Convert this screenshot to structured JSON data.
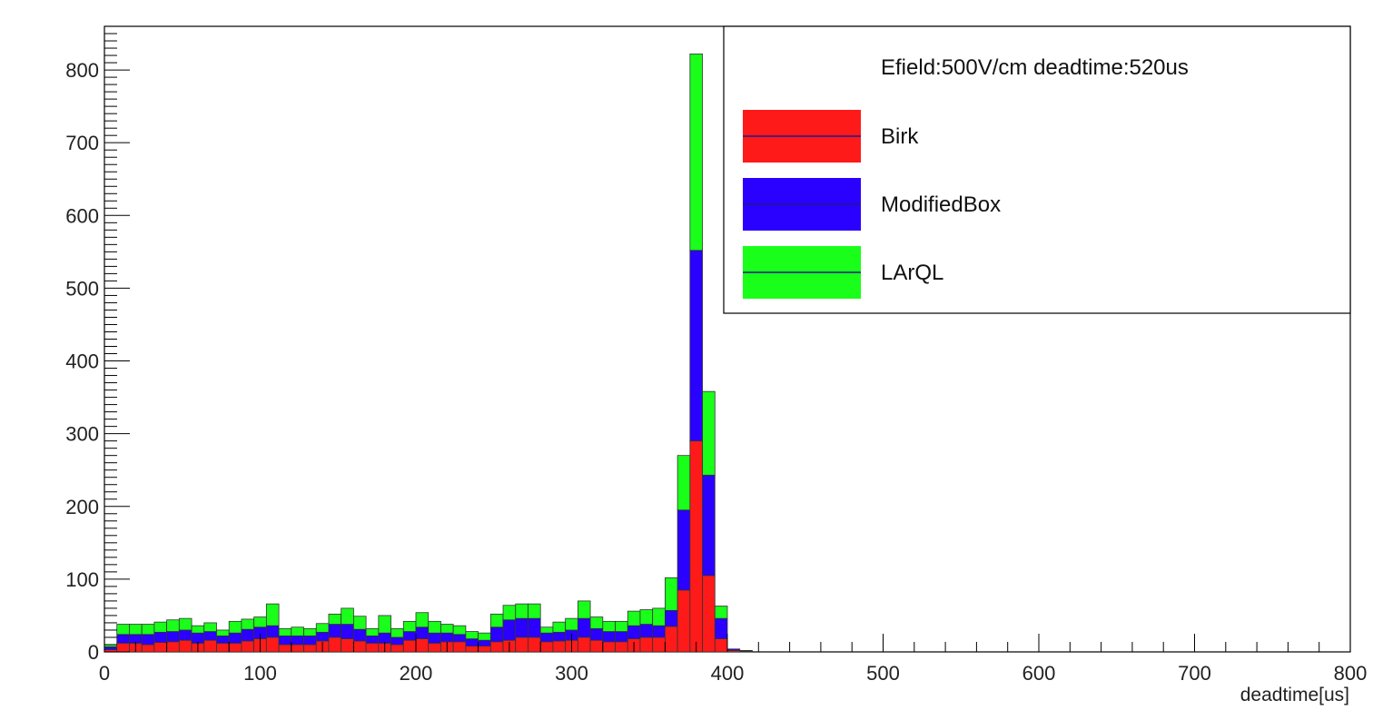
{
  "chart_data": {
    "type": "bar",
    "stacked": true,
    "title": "",
    "xlabel": "deadtime[us]",
    "ylabel": "",
    "xlim": [
      0,
      800
    ],
    "ylim": [
      0,
      860
    ],
    "bin_width": 8,
    "x_ticks": [
      "0",
      "100",
      "200",
      "300",
      "400",
      "500",
      "600",
      "700",
      "800"
    ],
    "y_ticks": [
      "0",
      "100",
      "200",
      "300",
      "400",
      "500",
      "600",
      "700",
      "800"
    ],
    "legend_position": "top-right",
    "legend_header": "Efield:500V/cm deadtime:520us",
    "bins_start": [
      0,
      8,
      16,
      24,
      32,
      40,
      48,
      56,
      64,
      72,
      80,
      88,
      96,
      104,
      112,
      120,
      128,
      136,
      144,
      152,
      160,
      168,
      176,
      184,
      192,
      200,
      208,
      216,
      224,
      232,
      240,
      248,
      256,
      264,
      272,
      280,
      288,
      296,
      304,
      312,
      320,
      328,
      336,
      344,
      352,
      360,
      368,
      376,
      384,
      392,
      400,
      408
    ],
    "series": [
      {
        "name": "Birk",
        "color": "#ff1a1a",
        "values": [
          3,
          12,
          12,
          10,
          13,
          14,
          16,
          12,
          16,
          12,
          12,
          15,
          18,
          20,
          10,
          10,
          10,
          15,
          20,
          18,
          15,
          12,
          12,
          10,
          16,
          18,
          12,
          14,
          14,
          8,
          8,
          14,
          16,
          20,
          20,
          14,
          15,
          16,
          20,
          16,
          14,
          14,
          18,
          20,
          20,
          35,
          85,
          290,
          105,
          18,
          2,
          1
        ]
      },
      {
        "name": "ModifiedBox",
        "color": "#2a00ff",
        "values": [
          4,
          12,
          12,
          14,
          14,
          14,
          14,
          14,
          12,
          10,
          14,
          16,
          16,
          16,
          12,
          12,
          12,
          12,
          18,
          20,
          16,
          10,
          14,
          10,
          12,
          16,
          14,
          12,
          10,
          10,
          8,
          20,
          28,
          26,
          26,
          12,
          12,
          14,
          26,
          16,
          14,
          14,
          18,
          18,
          16,
          22,
          110,
          262,
          138,
          28,
          2,
          1
        ]
      },
      {
        "name": "LArQL",
        "color": "#1aff1a",
        "values": [
          3,
          14,
          14,
          14,
          14,
          16,
          16,
          10,
          12,
          8,
          16,
          14,
          14,
          30,
          10,
          12,
          10,
          12,
          14,
          22,
          18,
          10,
          24,
          12,
          14,
          20,
          16,
          12,
          12,
          10,
          10,
          18,
          20,
          20,
          20,
          8,
          14,
          16,
          24,
          16,
          14,
          14,
          20,
          20,
          24,
          45,
          75,
          270,
          115,
          17,
          0,
          0
        ]
      }
    ]
  }
}
